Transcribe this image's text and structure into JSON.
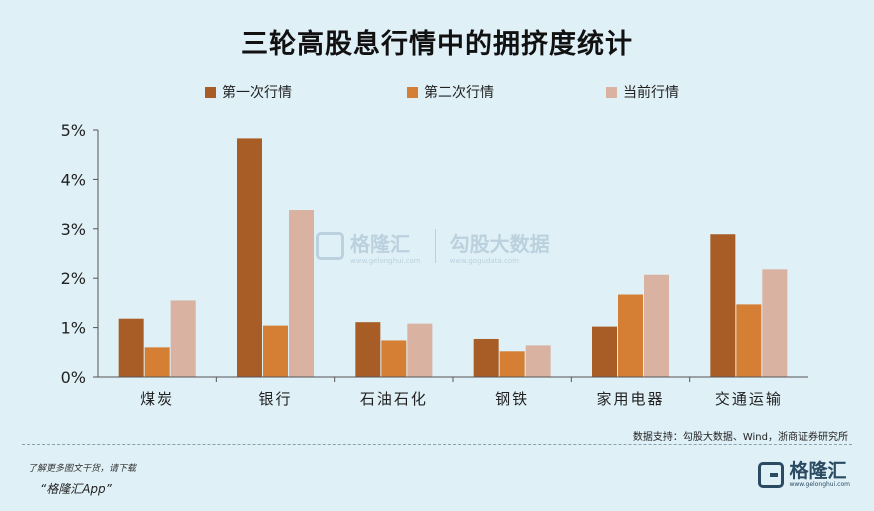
{
  "chart_data": {
    "type": "bar",
    "title": "三轮高股息行情中的拥挤度统计",
    "categories": [
      "煤炭",
      "银行",
      "石油石化",
      "钢铁",
      "家用电器",
      "交通运输"
    ],
    "series": [
      {
        "name": "第一次行情",
        "color": "#a85d26",
        "values": [
          1.18,
          4.83,
          1.11,
          0.77,
          1.02,
          2.89
        ]
      },
      {
        "name": "第二次行情",
        "color": "#d57f34",
        "values": [
          0.6,
          1.04,
          0.74,
          0.52,
          1.67,
          1.47
        ]
      },
      {
        "name": "当前行情",
        "color": "#d9b2a2",
        "values": [
          1.55,
          3.38,
          1.08,
          0.64,
          2.07,
          2.18
        ]
      }
    ],
    "yticks": [
      "0%",
      "1%",
      "2%",
      "3%",
      "4%",
      "5%"
    ],
    "ylim": [
      0,
      5
    ],
    "grid": false,
    "legend_position": "top"
  },
  "watermark": {
    "brand": "格隆汇",
    "brand_url": "www.gelonghui.com",
    "data_brand": "勾股大数据",
    "data_url": "www.gogudata.com"
  },
  "source_text": "数据支持：勾股大数据、Wind，浙商证券研究所",
  "promo": {
    "line1": "了解更多图文干货，请下载",
    "line2": "“格隆汇App”"
  },
  "brand_footer": {
    "name": "格隆汇",
    "url": "www.gelonghui.com"
  },
  "colors": {
    "background": "#dff0f7",
    "axis": "#555555"
  }
}
